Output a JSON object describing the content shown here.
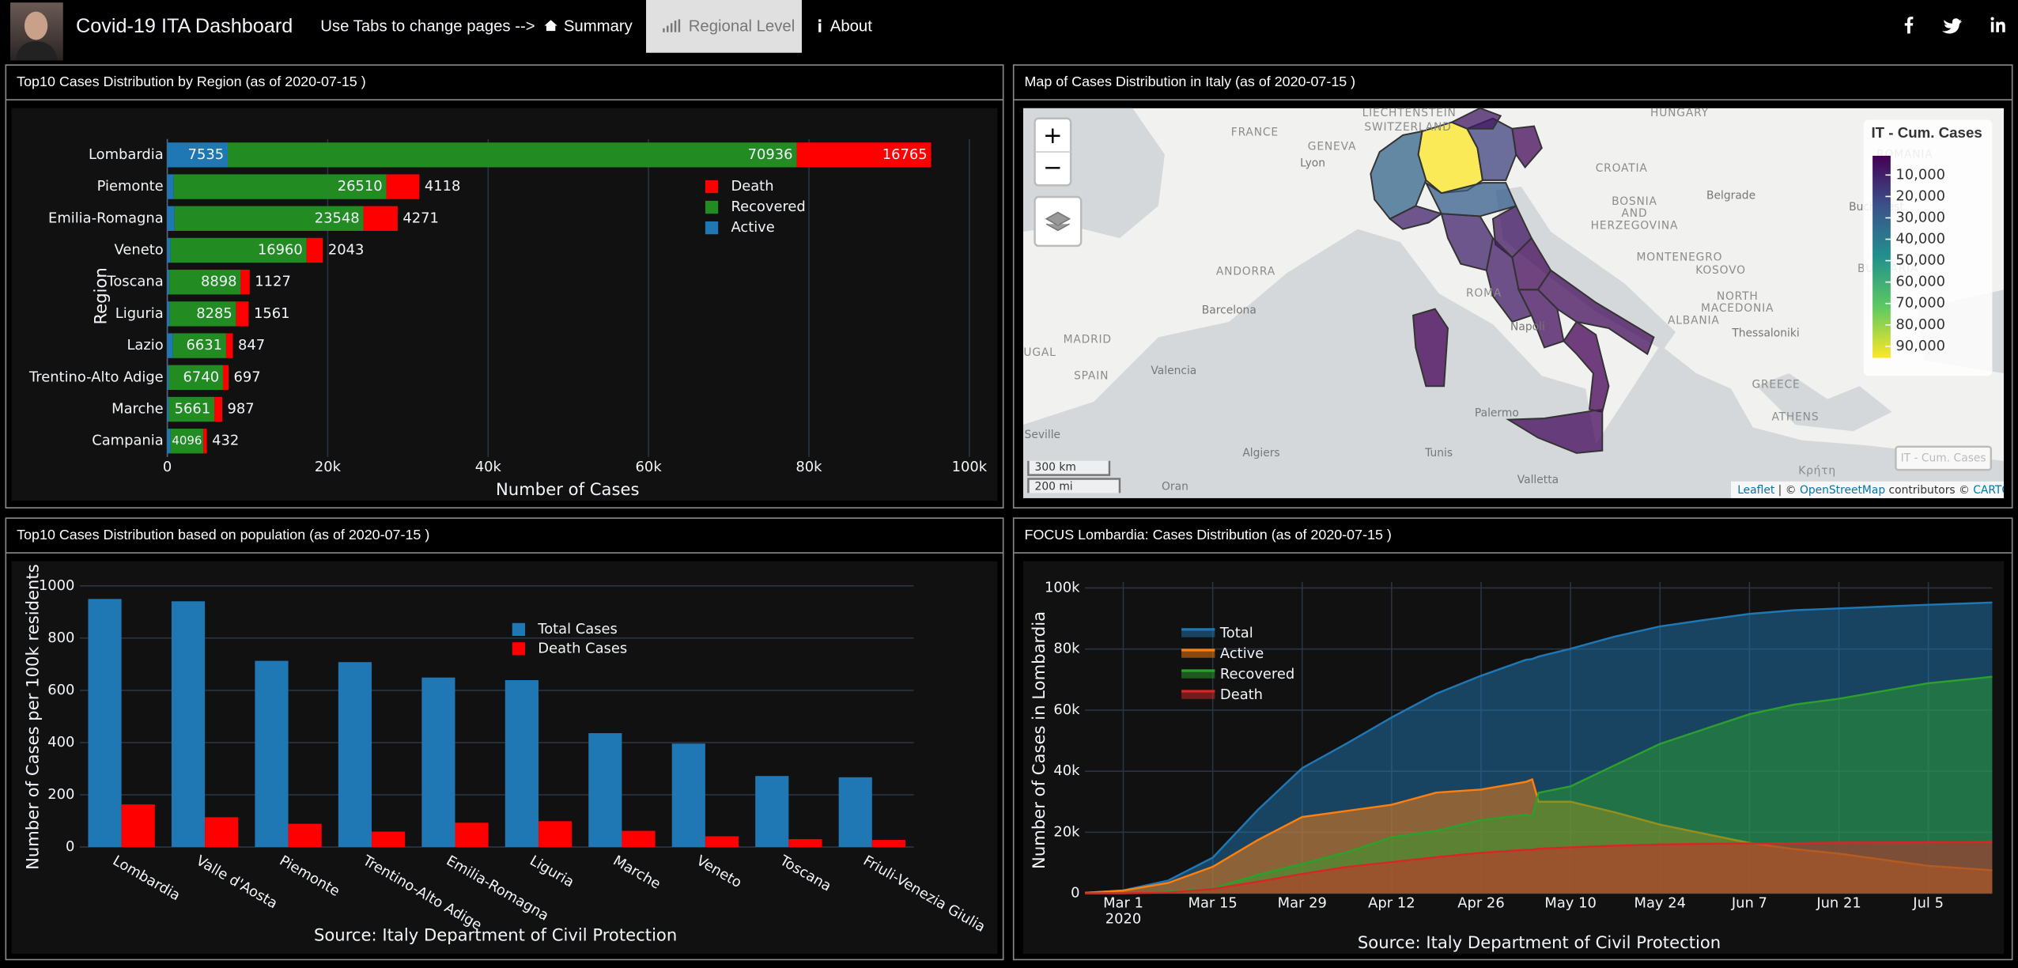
{
  "navbar": {
    "title": "Covid-19 ITA Dashboard",
    "hint": "Use Tabs to change pages -->",
    "tabs": [
      "Summary",
      "Regional Level",
      "About"
    ],
    "active_tab": 1
  },
  "chart_data": [
    {
      "type": "bar",
      "orientation": "h",
      "barmode": "stack",
      "title": "Top10 Cases Distribution by Region (as of 2020-07-15 )",
      "categories": [
        "Lombardia",
        "Piemonte",
        "Emilia-Romagna",
        "Veneto",
        "Toscana",
        "Liguria",
        "Lazio",
        "Trentino-Alto Adige",
        "Marche",
        "Campania"
      ],
      "series": [
        {
          "name": "Active",
          "color": "#1f77b4",
          "values": [
            7535,
            800,
            900,
            400,
            250,
            300,
            700,
            200,
            200,
            400
          ]
        },
        {
          "name": "Recovered",
          "color": "#228b22",
          "values": [
            70936,
            26510,
            23548,
            16960,
            8898,
            8285,
            6631,
            6740,
            5661,
            4096
          ]
        },
        {
          "name": "Death",
          "color": "#ff0000",
          "values": [
            16765,
            4118,
            4271,
            2043,
            1127,
            1561,
            847,
            697,
            987,
            432
          ]
        }
      ],
      "xlim": [
        0,
        102700
      ],
      "xticks": [
        0,
        {
          "value": 20000,
          "label": "20k"
        },
        {
          "value": 40000,
          "label": "40k"
        },
        {
          "value": 60000,
          "label": "60k"
        },
        {
          "value": 80000,
          "label": "80k"
        },
        {
          "value": 100000,
          "label": "100k"
        }
      ],
      "xlabel": "Number of Cases",
      "ylabel": "Region",
      "grid": true,
      "legend": "top-right"
    },
    {
      "type": "map",
      "title": "Map of Cases Distribution in Italy (as of 2020-07-15 )",
      "legend_title": "IT - Cum. Cases",
      "clim": [
        1000,
        95400
      ],
      "colorbar_ticks": [
        {
          "value": 10000,
          "label": "10,000"
        },
        {
          "value": 20000,
          "label": "20,000"
        },
        {
          "value": 30000,
          "label": "30,000"
        },
        {
          "value": 40000,
          "label": "40,000"
        },
        {
          "value": 50000,
          "label": "50,000"
        },
        {
          "value": 60000,
          "label": "60,000"
        },
        {
          "value": 70000,
          "label": "70,000"
        },
        {
          "value": 80000,
          "label": "80,000"
        },
        {
          "value": 90000,
          "label": "90,000"
        }
      ],
      "values": [
        95236,
        31428,
        10017,
        19403,
        7437,
        3326,
        28719,
        10325,
        6835,
        8410,
        3317,
        4860,
        4534,
        1224,
        3100,
        1374
      ],
      "zoom_labels": [
        "+",
        "−"
      ],
      "place_labels": [
        "FRANCE",
        "LIECHTENSTEIN",
        "SWITZERLAND",
        "HUNGARY",
        "ROMANIA",
        "CROATIA",
        "BOSNIA\nAND\nHERZEGOVINA",
        "GENEVA",
        "Lyon",
        "Belgrade",
        "Bucharest",
        "MONTENEGRO",
        "KOSOVO",
        "BULGARIA",
        "NORTH\nMACEDONIA",
        "ALBANIA",
        "Thessaloniki",
        "GREECE",
        "ATHENS",
        "ANDORRA",
        "Barcelona",
        "MADRID",
        "Valencia",
        "SPAIN",
        "UGAL",
        "Seville",
        "Algiers",
        "Tunis",
        "Oran",
        "Valletta",
        "Palermo",
        "Napoli",
        "ROMA",
        "Κρήτη"
      ],
      "scale_labels": [
        "300 km",
        "200 mi"
      ],
      "attribution": [
        "Leaflet",
        " | © ",
        "OpenStreetMap",
        " contributors © ",
        "CARTO"
      ],
      "layer_button": "IT - Cum. Cases"
    },
    {
      "type": "bar",
      "orientation": "v",
      "barmode": "group",
      "title": "Top10 Cases Distribution based on population (as of 2020-07-15 )",
      "categories": [
        "Lombardia",
        "Valle d'Aosta",
        "Piemonte",
        "Trentino-Alto Adige",
        "Emilia-Romagna",
        "Liguria",
        "Marche",
        "Veneto",
        "Toscana",
        "Friuli-Venezia Giulia"
      ],
      "series": [
        {
          "name": "Total Cases",
          "color": "#1f77b4",
          "values": [
            950,
            941,
            713,
            708,
            649,
            639,
            436,
            396,
            272,
            267
          ]
        },
        {
          "name": "Death Cases",
          "color": "#ff0000",
          "values": [
            163,
            114,
            89,
            59,
            93,
            99,
            62,
            41,
            30,
            27
          ]
        }
      ],
      "ylim": [
        0,
        1050
      ],
      "yticks": [
        0,
        200,
        400,
        600,
        800,
        1000
      ],
      "xlabel": "Source: Italy Department of Civil Protection",
      "ylabel": "Number of Cases per 100k residents",
      "grid": true,
      "legend": "top-right"
    },
    {
      "type": "area",
      "title": "FOCUS Lombardia: Cases Distribution (as of 2020-07-15 )",
      "x": [
        "2020-02-24",
        "2020-03-01",
        "2020-03-08",
        "2020-03-15",
        "2020-03-22",
        "2020-03-29",
        "2020-04-05",
        "2020-04-12",
        "2020-04-19",
        "2020-04-26",
        "2020-05-03",
        "2020-05-04",
        "2020-05-05",
        "2020-05-10",
        "2020-05-17",
        "2020-05-24",
        "2020-05-31",
        "2020-06-07",
        "2020-06-14",
        "2020-06-21",
        "2020-06-28",
        "2020-07-05",
        "2020-07-12",
        "2020-07-15"
      ],
      "series": [
        {
          "name": "Total",
          "color": "#1f77b4",
          "values": [
            172,
            984,
            4189,
            11685,
            27206,
            41007,
            49118,
            57592,
            65381,
            71256,
            76469,
            76732,
            77528,
            80089,
            84119,
            87417,
            89526,
            91500,
            92700,
            93300,
            93900,
            94500,
            95000,
            95236
          ]
        },
        {
          "name": "Active",
          "color": "#ff7f0e",
          "values": [
            160,
            900,
            3400,
            8700,
            17400,
            25000,
            27000,
            29000,
            33000,
            34000,
            36500,
            37300,
            30000,
            30000,
            26500,
            22500,
            19500,
            16500,
            14500,
            13000,
            11000,
            9000,
            8000,
            7535
          ]
        },
        {
          "name": "Recovered",
          "color": "#2ca02c",
          "values": [
            6,
            53,
            522,
            1565,
            6030,
            9647,
            13462,
            18354,
            20530,
            23987,
            25738,
            25138,
            32936,
            35035,
            42022,
            48934,
            53825,
            58651,
            61795,
            63710,
            66260,
            68809,
            70243,
            70936
          ]
        },
        {
          "name": "Death",
          "color": "#d62728",
          "values": [
            6,
            31,
            267,
            1420,
            3776,
            6360,
            8656,
            10238,
            11851,
            13269,
            14231,
            14294,
            14592,
            15054,
            15597,
            15983,
            16201,
            16349,
            16405,
            16590,
            16640,
            16691,
            16757,
            16765
          ]
        }
      ],
      "xlim": [
        "2020-02-24",
        "2020-07-15"
      ],
      "xticks": [
        {
          "value": "2020-03-01",
          "label": "Mar 1\n2020"
        },
        {
          "value": "2020-03-15",
          "label": "Mar 15"
        },
        {
          "value": "2020-03-29",
          "label": "Mar 29"
        },
        {
          "value": "2020-04-12",
          "label": "Apr 12"
        },
        {
          "value": "2020-04-26",
          "label": "Apr 26"
        },
        {
          "value": "2020-05-10",
          "label": "May 10"
        },
        {
          "value": "2020-05-24",
          "label": "May 24"
        },
        {
          "value": "2020-06-07",
          "label": "Jun 7"
        },
        {
          "value": "2020-06-21",
          "label": "Jun 21"
        },
        {
          "value": "2020-07-05",
          "label": "Jul 5"
        }
      ],
      "ylim": [
        0,
        102000
      ],
      "yticks": [
        0,
        {
          "value": 20000,
          "label": "20k"
        },
        {
          "value": 40000,
          "label": "40k"
        },
        {
          "value": 60000,
          "label": "60k"
        },
        {
          "value": 80000,
          "label": "80k"
        },
        {
          "value": 100000,
          "label": "100k"
        }
      ],
      "xlabel": "Source: Italy Department of Civil Protection",
      "ylabel": "Number of Cases in Lombardia",
      "grid": true,
      "legend": "top-left"
    }
  ]
}
